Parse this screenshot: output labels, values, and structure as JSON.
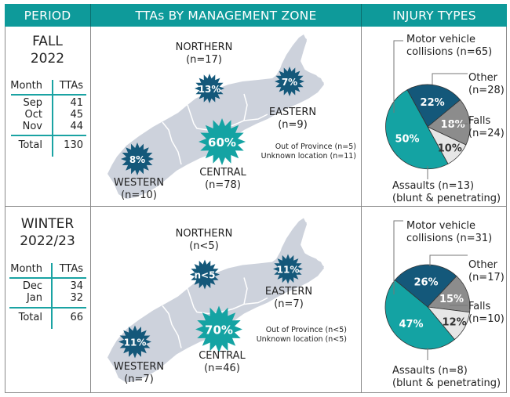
{
  "headers": {
    "period": "PERIOD",
    "zones": "TTAs BY MANAGEMENT ZONE",
    "injury": "INJURY TYPES"
  },
  "colors": {
    "header_bg": "#0e9a9a",
    "teal": "#14a3a3",
    "navy": "#14587a",
    "grey": "#8c8c8c",
    "light": "#e6e6e6",
    "map": "#cdd2dc"
  },
  "periods": [
    {
      "title_line1": "FALL",
      "title_line2": "2022",
      "table": {
        "col_month": "Month",
        "col_ttas": "TTAs",
        "rows": [
          {
            "month": "Sep",
            "ttas": "41"
          },
          {
            "month": "Oct",
            "ttas": "45"
          },
          {
            "month": "Nov",
            "ttas": "44"
          }
        ],
        "total_label": "Total",
        "total_value": "130"
      },
      "zones": {
        "northern": {
          "name": "NORTHERN",
          "n": "(n=17)",
          "pct": "13%"
        },
        "eastern": {
          "name": "EASTERN",
          "n": "(n=9)",
          "pct": "7%"
        },
        "central": {
          "name": "CENTRAL",
          "n": "(n=78)",
          "pct": "60%"
        },
        "western": {
          "name": "WESTERN",
          "n": "(n=10)",
          "pct": "8%"
        }
      },
      "notes": {
        "out_of_province": "Out of Province (n=5)",
        "unknown": "Unknown location (n=11)"
      },
      "pie_labels": {
        "mvc_line1": "Motor vehicle",
        "mvc_line2": "collisions (n=65)",
        "other_line1": "Other",
        "other_line2": "(n=28)",
        "falls_line1": "Falls",
        "falls_line2": "(n=24)",
        "assaults_line1": "Assaults (n=13)",
        "assaults_line2": "(blunt & penetrating)"
      }
    },
    {
      "title_line1": "WINTER",
      "title_line2": "2022/23",
      "table": {
        "col_month": "Month",
        "col_ttas": "TTAs",
        "rows": [
          {
            "month": "Dec",
            "ttas": "34"
          },
          {
            "month": "Jan",
            "ttas": "32"
          }
        ],
        "total_label": "Total",
        "total_value": "66"
      },
      "zones": {
        "northern": {
          "name": "NORTHERN",
          "n": "(n<5)",
          "pct": "n<5"
        },
        "eastern": {
          "name": "EASTERN",
          "n": "(n=7)",
          "pct": "11%"
        },
        "central": {
          "name": "CENTRAL",
          "n": "(n=46)",
          "pct": "70%"
        },
        "western": {
          "name": "WESTERN",
          "n": "(n=7)",
          "pct": "11%"
        }
      },
      "notes": {
        "out_of_province": "Out of Province (n<5)",
        "unknown": "Unknown location (n<5)"
      },
      "pie_labels": {
        "mvc_line1": "Motor vehicle",
        "mvc_line2": "collisions (n=31)",
        "other_line1": "Other",
        "other_line2": "(n=17)",
        "falls_line1": "Falls",
        "falls_line2": "(n=10)",
        "assaults_line1": "Assaults (n=8)",
        "assaults_line2": "(blunt & penetrating)"
      }
    }
  ],
  "chart_data": [
    {
      "type": "pie",
      "title": "INJURY TYPES — FALL 2022",
      "categories": [
        "Other",
        "Falls",
        "Assaults (blunt & penetrating)",
        "Motor vehicle collisions"
      ],
      "values": [
        22,
        18,
        10,
        50
      ],
      "counts": [
        28,
        24,
        13,
        65
      ],
      "labels": [
        "22%",
        "18%",
        "10%",
        "50%"
      ]
    },
    {
      "type": "pie",
      "title": "INJURY TYPES — WINTER 2022/23",
      "categories": [
        "Other",
        "Falls",
        "Assaults (blunt & penetrating)",
        "Motor vehicle collisions"
      ],
      "values": [
        26,
        15,
        12,
        47
      ],
      "counts": [
        17,
        10,
        8,
        31
      ],
      "labels": [
        "26%",
        "15%",
        "12%",
        "47%"
      ]
    },
    {
      "type": "table",
      "title": "TTAs BY MANAGEMENT ZONE — FALL 2022",
      "categories": [
        "Northern",
        "Eastern",
        "Central",
        "Western"
      ],
      "values": [
        13,
        7,
        60,
        8
      ],
      "counts": [
        "17",
        "9",
        "78",
        "10"
      ],
      "out_of_province": "5",
      "unknown_location": "11"
    },
    {
      "type": "table",
      "title": "TTAs BY MANAGEMENT ZONE — WINTER 2022/23",
      "categories": [
        "Northern",
        "Eastern",
        "Central",
        "Western"
      ],
      "values": [
        null,
        11,
        70,
        11
      ],
      "counts": [
        "<5",
        "7",
        "46",
        "7"
      ],
      "out_of_province": "<5",
      "unknown_location": "<5"
    }
  ]
}
